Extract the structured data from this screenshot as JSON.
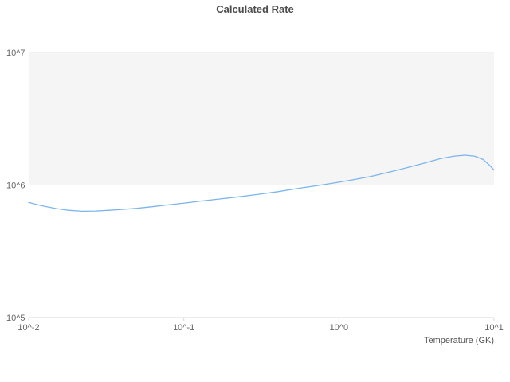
{
  "title": "Calculated Rate",
  "chart_data": {
    "type": "line",
    "title": "Calculated Rate",
    "xlabel": "Temperature (GK)",
    "ylabel": "",
    "x_scale": "log",
    "y_scale": "log",
    "xlim": [
      0.01,
      10
    ],
    "ylim": [
      100000,
      10000000
    ],
    "x_tick_values": [
      0.01,
      0.1,
      1,
      10
    ],
    "x_tick_labels": [
      "10^-2",
      "10^-1",
      "10^0",
      "10^1"
    ],
    "y_tick_values": [
      100000,
      1000000,
      10000000
    ],
    "y_tick_labels": [
      "10^5",
      "10^6",
      "10^7"
    ],
    "grid": "horizontal-decades",
    "band": {
      "from": 1000000,
      "to": 10000000,
      "color": "#f5f5f5"
    },
    "legend": "none",
    "line_color": "#7cb5ec",
    "gridline_color": "#e6e6e6",
    "axis_line_color": "#d8d8d8",
    "series": [
      {
        "name": "Calculated Rate",
        "x": [
          0.01,
          0.012,
          0.015,
          0.018,
          0.022,
          0.027,
          0.033,
          0.04,
          0.05,
          0.065,
          0.08,
          0.1,
          0.13,
          0.17,
          0.22,
          0.3,
          0.4,
          0.55,
          0.7,
          0.9,
          1.2,
          1.6,
          2.1,
          2.8,
          3.6,
          4.5,
          5.5,
          6.5,
          7.5,
          8.5,
          9.3,
          10.0
        ],
        "y": [
          740000,
          700000,
          665000,
          645000,
          635000,
          637000,
          645000,
          655000,
          668000,
          690000,
          710000,
          730000,
          758000,
          785000,
          812000,
          850000,
          890000,
          945000,
          985000,
          1030000,
          1090000,
          1160000,
          1250000,
          1360000,
          1470000,
          1580000,
          1650000,
          1680000,
          1650000,
          1560000,
          1420000,
          1300000
        ]
      }
    ]
  }
}
